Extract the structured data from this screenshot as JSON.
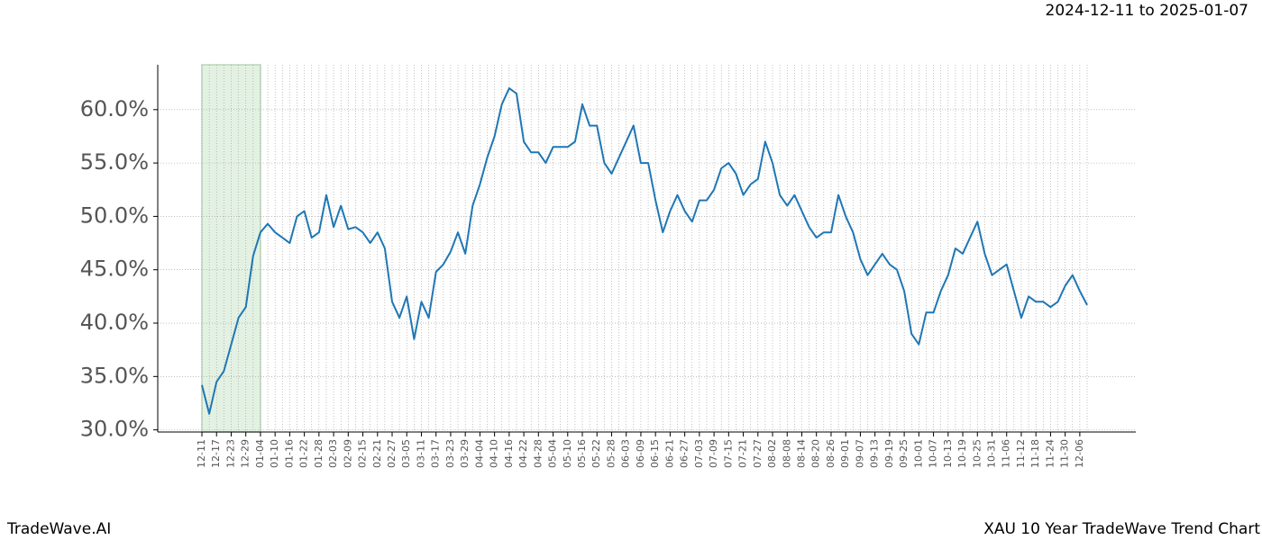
{
  "chart_data": {
    "type": "line",
    "header": "2024-12-11 to 2025-01-07",
    "footer_left": "TradeWave.AI",
    "footer_right": "XAU 10 Year TradeWave Trend Chart",
    "categories": [
      "12-11",
      null,
      "12-17",
      null,
      "12-23",
      null,
      "12-29",
      null,
      "01-04",
      null,
      "01-10",
      null,
      "01-16",
      null,
      "01-22",
      null,
      "01-28",
      null,
      "02-03",
      null,
      "02-09",
      null,
      "02-15",
      null,
      "02-21",
      null,
      "02-27",
      null,
      "03-05",
      null,
      "03-11",
      null,
      "03-17",
      null,
      "03-23",
      null,
      "03-29",
      null,
      "04-04",
      null,
      "04-10",
      null,
      "04-16",
      null,
      "04-22",
      null,
      "04-28",
      null,
      "05-04",
      null,
      "05-10",
      null,
      "05-16",
      null,
      "05-22",
      null,
      "05-28",
      null,
      "06-03",
      null,
      "06-09",
      null,
      "06-15",
      null,
      "06-21",
      null,
      "06-27",
      null,
      "07-03",
      null,
      "07-09",
      null,
      "07-15",
      null,
      "07-21",
      null,
      "07-27",
      null,
      "08-02",
      null,
      "08-08",
      null,
      "08-14",
      null,
      "08-20",
      null,
      "08-26",
      null,
      "09-01",
      null,
      "09-07",
      null,
      "09-13",
      null,
      "09-19",
      null,
      "09-25",
      null,
      "10-01",
      null,
      "10-07",
      null,
      "10-13",
      null,
      "10-19",
      null,
      "10-25",
      null,
      "10-31",
      null,
      "11-06",
      null,
      "11-12",
      null,
      "11-18",
      null,
      "11-24",
      null,
      "11-30",
      null,
      "12-06",
      null
    ],
    "series": [
      {
        "name": "XAU",
        "color": "#1f77b4",
        "values": [
          34.2,
          31.5,
          34.5,
          35.5,
          38,
          40.5,
          41.5,
          46.3,
          48.5,
          49.3,
          48.5,
          48,
          47.5,
          50,
          50.5,
          48,
          48.5,
          52,
          49,
          51,
          48.8,
          49,
          48.5,
          47.5,
          48.5,
          47,
          42,
          40.5,
          42.5,
          38.5,
          42,
          40.5,
          44.8,
          45.5,
          46.7,
          48.5,
          46.5,
          51,
          53,
          55.5,
          57.5,
          60.5,
          62,
          61.5,
          57,
          56,
          56,
          55,
          56.5,
          56.5,
          56.5,
          57,
          60.5,
          58.5,
          58.5,
          55,
          54,
          55.5,
          57,
          58.5,
          55,
          55,
          51.5,
          48.5,
          50.5,
          52,
          50.5,
          49.5,
          51.5,
          51.5,
          52.5,
          54.5,
          55,
          54,
          52,
          53,
          53.5,
          57,
          55,
          52,
          51,
          52,
          50.5,
          49,
          48,
          48.5,
          48.5,
          52,
          50,
          48.5,
          46,
          44.5,
          45.5,
          46.5,
          45.5,
          45,
          43,
          39,
          38,
          41,
          41,
          43,
          44.5,
          47,
          46.5,
          48,
          49.5,
          46.5,
          44.5,
          45,
          45.5,
          43,
          40.5,
          42.5,
          42,
          42,
          41.5,
          42,
          43.5,
          44.5,
          43,
          41.7
        ]
      }
    ],
    "highlight": [
      "12-11",
      "01-04"
    ],
    "ylim": [
      29.8,
      64.2
    ],
    "yticks": [
      {
        "value": 30,
        "label": "30.0%"
      },
      {
        "value": 35,
        "label": "35.0%"
      },
      {
        "value": 40,
        "label": "40.0%"
      },
      {
        "value": 45,
        "label": "45.0%"
      },
      {
        "value": 50,
        "label": "50.0%"
      },
      {
        "value": 55,
        "label": "55.0%"
      },
      {
        "value": 60,
        "label": "60.0%"
      }
    ],
    "grid": true
  }
}
